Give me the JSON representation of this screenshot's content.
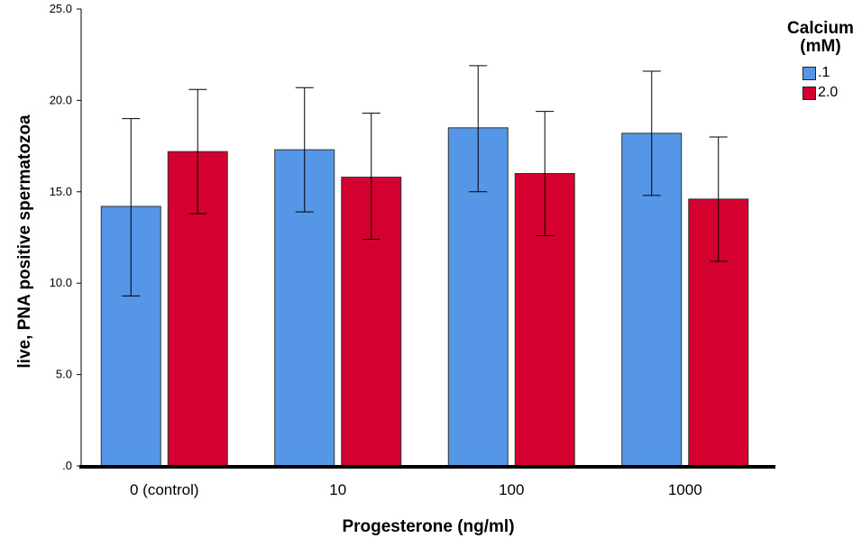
{
  "chart_data": {
    "type": "bar",
    "title": "",
    "xlabel": "Progesterone (ng/ml)",
    "ylabel": "live, PNA positive spermatozoa",
    "ylim": [
      0,
      25.0
    ],
    "yticks": [
      ".0",
      "5.0",
      "10.0",
      "15.0",
      "20.0",
      "25.0"
    ],
    "ytick_values": [
      0,
      5,
      10,
      15,
      20,
      25
    ],
    "categories": [
      "0 (control)",
      "10",
      "100",
      "1000"
    ],
    "legend": {
      "title": "Calcium (mM)",
      "title_lines": [
        "Calcium",
        "(mM)"
      ],
      "placement": "top-right"
    },
    "series": [
      {
        "name": ".1",
        "color": "#5596E6",
        "values": [
          14.2,
          17.3,
          18.5,
          18.2
        ],
        "err_low": [
          9.3,
          13.9,
          15.0,
          14.8
        ],
        "err_high": [
          19.0,
          20.7,
          21.9,
          21.6
        ]
      },
      {
        "name": "2.0",
        "color": "#D4002F",
        "values": [
          17.2,
          15.8,
          16.0,
          14.6
        ],
        "err_low": [
          13.8,
          12.4,
          12.6,
          11.2
        ],
        "err_high": [
          20.6,
          19.3,
          19.4,
          18.0
        ]
      }
    ],
    "grid": false
  }
}
